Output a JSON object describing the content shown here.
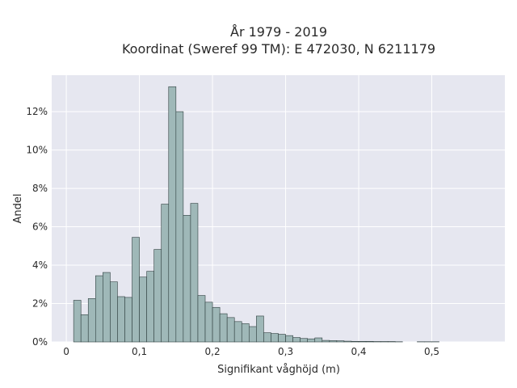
{
  "chart_data": {
    "type": "bar",
    "title_line1": "År 1979 - 2019",
    "title_line2": "Koordinat (Sweref 99 TM): E 472030, N 6211179",
    "xlabel": "Signifikant våghöjd (m)",
    "ylabel": "Andel",
    "xlim": [
      -0.02,
      0.6
    ],
    "ylim": [
      0,
      0.139
    ],
    "bin_width": 0.01,
    "bin_starts": [
      0.01,
      0.02,
      0.03,
      0.04,
      0.05,
      0.06,
      0.07,
      0.08,
      0.09,
      0.1,
      0.11,
      0.12,
      0.13,
      0.14,
      0.15,
      0.16,
      0.17,
      0.18,
      0.19,
      0.2,
      0.21,
      0.22,
      0.23,
      0.24,
      0.25,
      0.26,
      0.27,
      0.28,
      0.29,
      0.3,
      0.31,
      0.32,
      0.33,
      0.34,
      0.35,
      0.36,
      0.37,
      0.38,
      0.39,
      0.4,
      0.41,
      0.42,
      0.43,
      0.44,
      0.45,
      0.46,
      0.47,
      0.48,
      0.49,
      0.5
    ],
    "values": [
      0.0217,
      0.0142,
      0.0226,
      0.0345,
      0.0362,
      0.0313,
      0.0236,
      0.0232,
      0.0545,
      0.0338,
      0.0368,
      0.0482,
      0.0718,
      0.133,
      0.12,
      0.066,
      0.0722,
      0.0242,
      0.0207,
      0.018,
      0.0147,
      0.0127,
      0.0106,
      0.0095,
      0.008,
      0.0135,
      0.0048,
      0.0044,
      0.004,
      0.0033,
      0.0023,
      0.0018,
      0.0016,
      0.0021,
      0.0008,
      0.0007,
      0.0006,
      0.0004,
      0.0003,
      0.0003,
      0.0003,
      0.0002,
      0.0002,
      0.0002,
      0.0001,
      0.0,
      0.0,
      0.0001,
      0.0001,
      0.0001
    ],
    "x_ticks": [
      0,
      0.1,
      0.2,
      0.3,
      0.4,
      0.5
    ],
    "x_tick_labels": [
      "0",
      "0,1",
      "0,2",
      "0,3",
      "0,4",
      "0,5"
    ],
    "y_ticks": [
      0,
      0.02,
      0.04,
      0.06,
      0.08,
      0.1,
      0.12
    ],
    "y_tick_labels": [
      "0%",
      "2%",
      "4%",
      "6%",
      "8%",
      "10%",
      "12%"
    ],
    "grid": true,
    "colors": {
      "bar_fill": "#9fb8b8",
      "bar_stroke": "#2f3f3f",
      "plot_bg": "#e6e7f0",
      "grid": "#ffffff"
    }
  }
}
